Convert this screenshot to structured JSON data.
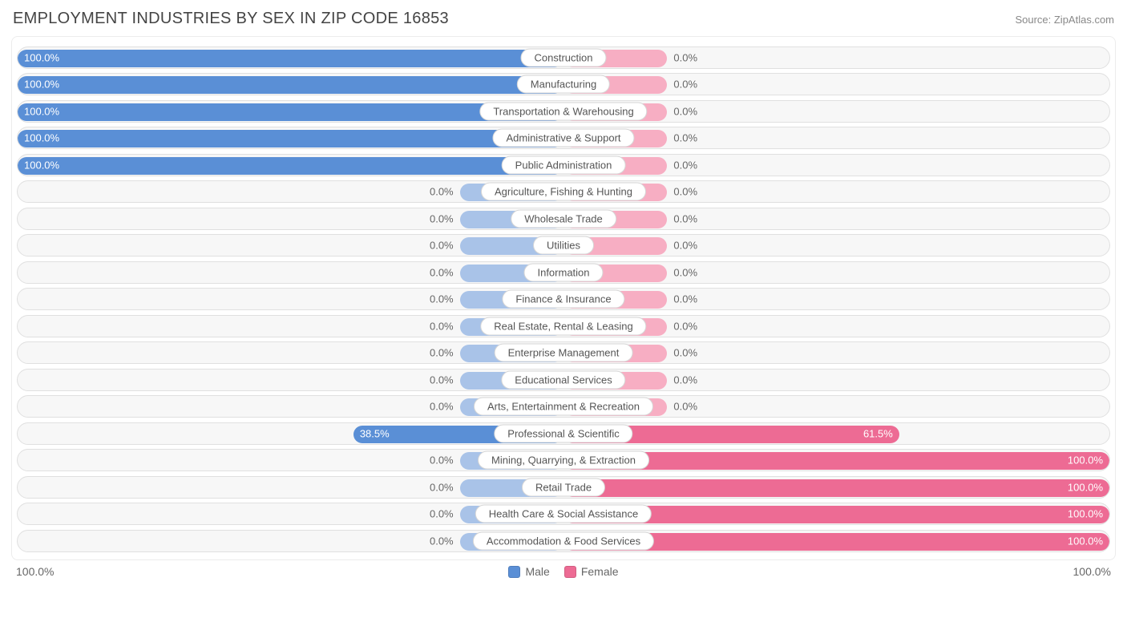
{
  "title": "EMPLOYMENT INDUSTRIES BY SEX IN ZIP CODE 16853",
  "source": "Source: ZipAtlas.com",
  "colors": {
    "male_strong": "#5a8fd6",
    "male_light": "#a9c3e8",
    "female_strong": "#ed6b94",
    "female_light": "#f7aec3",
    "row_bg": "#f7f7f7",
    "row_border": "#e0e0e0",
    "text": "#555555",
    "text_muted": "#888888",
    "label_bg": "#ffffff"
  },
  "axis": {
    "left": "100.0%",
    "right": "100.0%"
  },
  "legend": {
    "male": "Male",
    "female": "Female"
  },
  "default_bar_pct": 19,
  "rows": [
    {
      "category": "Construction",
      "male": 100.0,
      "female": 0.0
    },
    {
      "category": "Manufacturing",
      "male": 100.0,
      "female": 0.0
    },
    {
      "category": "Transportation & Warehousing",
      "male": 100.0,
      "female": 0.0
    },
    {
      "category": "Administrative & Support",
      "male": 100.0,
      "female": 0.0
    },
    {
      "category": "Public Administration",
      "male": 100.0,
      "female": 0.0
    },
    {
      "category": "Agriculture, Fishing & Hunting",
      "male": 0.0,
      "female": 0.0
    },
    {
      "category": "Wholesale Trade",
      "male": 0.0,
      "female": 0.0
    },
    {
      "category": "Utilities",
      "male": 0.0,
      "female": 0.0
    },
    {
      "category": "Information",
      "male": 0.0,
      "female": 0.0
    },
    {
      "category": "Finance & Insurance",
      "male": 0.0,
      "female": 0.0
    },
    {
      "category": "Real Estate, Rental & Leasing",
      "male": 0.0,
      "female": 0.0
    },
    {
      "category": "Enterprise Management",
      "male": 0.0,
      "female": 0.0
    },
    {
      "category": "Educational Services",
      "male": 0.0,
      "female": 0.0
    },
    {
      "category": "Arts, Entertainment & Recreation",
      "male": 0.0,
      "female": 0.0
    },
    {
      "category": "Professional & Scientific",
      "male": 38.5,
      "female": 61.5
    },
    {
      "category": "Mining, Quarrying, & Extraction",
      "male": 0.0,
      "female": 100.0
    },
    {
      "category": "Retail Trade",
      "male": 0.0,
      "female": 100.0
    },
    {
      "category": "Health Care & Social Assistance",
      "male": 0.0,
      "female": 100.0
    },
    {
      "category": "Accommodation & Food Services",
      "male": 0.0,
      "female": 100.0
    }
  ]
}
